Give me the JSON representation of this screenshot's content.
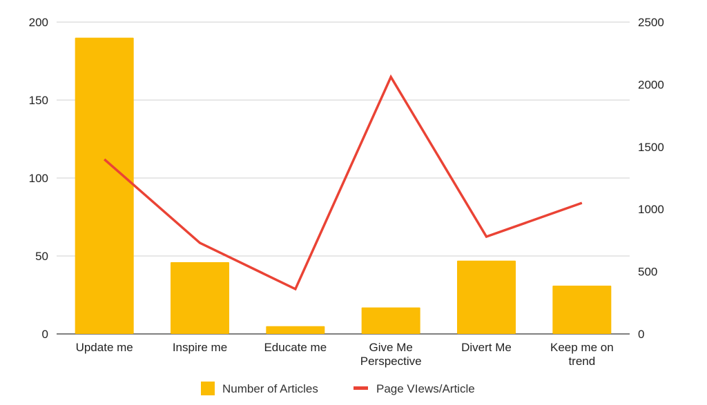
{
  "chart_data": {
    "type": "bar",
    "categories": [
      "Update me",
      "Inspire me",
      "Educate me",
      "Give Me Perspective",
      "Divert Me",
      "Keep me on trend"
    ],
    "category_lines": [
      [
        "Update me"
      ],
      [
        "Inspire me"
      ],
      [
        "Educate me"
      ],
      [
        "Give Me",
        "Perspective"
      ],
      [
        "Divert Me"
      ],
      [
        "Keep me on",
        "trend"
      ]
    ],
    "series": [
      {
        "name": "Number of Articles",
        "type": "bar",
        "axis": "left",
        "color": "#FBBC04",
        "values": [
          190,
          46,
          5,
          17,
          47,
          31
        ]
      },
      {
        "name": "Page VIews/Article",
        "type": "line",
        "axis": "right",
        "color": "#EA4335",
        "values": [
          1400,
          730,
          360,
          2060,
          780,
          1050
        ]
      }
    ],
    "y_left": {
      "ylim": [
        0,
        200
      ],
      "ticks": [
        "0",
        "50",
        "100",
        "150",
        "200"
      ]
    },
    "y_right": {
      "ylim": [
        0,
        2500
      ],
      "ticks": [
        "0",
        "500",
        "1000",
        "1500",
        "2000",
        "2500"
      ]
    },
    "title": "",
    "xlabel": "",
    "ylabel": "",
    "grid": true,
    "legend_position": "bottom"
  }
}
